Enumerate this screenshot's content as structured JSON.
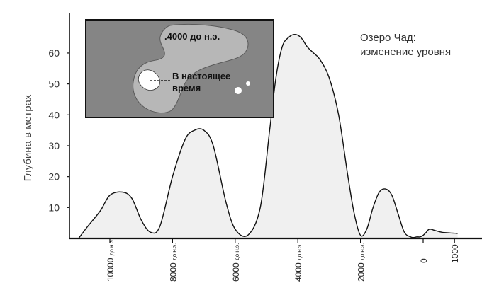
{
  "chart_data": {
    "type": "area",
    "title": "Озеро Чад:\nизменение уровня",
    "title_lines": [
      "Озеро Чад:",
      "изменение уровня"
    ],
    "ylabel": "Глубина в метрах",
    "xlabel": "",
    "yticks": [
      10,
      20,
      30,
      40,
      50,
      60
    ],
    "ylim": [
      0,
      68
    ],
    "xlim": [
      11000,
      -1100
    ],
    "xticks": [
      {
        "value": 10000,
        "label": "10000",
        "suffix": "до н.э."
      },
      {
        "value": 8000,
        "label": "8000",
        "suffix": "до н.э."
      },
      {
        "value": 6000,
        "label": "6000",
        "suffix": "до н.э."
      },
      {
        "value": 4000,
        "label": "4000",
        "suffix": "до н.э."
      },
      {
        "value": 2000,
        "label": "2000",
        "suffix": "до н.э."
      },
      {
        "value": 0,
        "label": "0",
        "suffix": ""
      },
      {
        "value": -1000,
        "label": "1000",
        "suffix": ""
      }
    ],
    "x": [
      11000,
      10700,
      10300,
      10000,
      9600,
      9300,
      9000,
      8700,
      8400,
      8000,
      7600,
      7300,
      7000,
      6700,
      6300,
      6000,
      5600,
      5200,
      4900,
      4700,
      4500,
      4300,
      4100,
      3900,
      3700,
      3500,
      3300,
      3000,
      2700,
      2400,
      2200,
      2000,
      1800,
      1600,
      1400,
      1200,
      1000,
      800,
      600,
      400,
      300,
      200,
      100,
      0,
      -100,
      -200,
      -400,
      -600,
      -800,
      -1000,
      -1100
    ],
    "values": [
      0,
      4,
      9,
      14,
      15,
      13,
      6,
      2,
      4,
      20,
      32,
      35,
      35,
      30,
      12,
      3,
      1,
      10,
      35,
      52,
      62,
      65,
      66,
      65,
      62,
      60,
      58,
      52,
      40,
      20,
      8,
      1,
      3,
      10,
      15,
      16,
      14,
      8,
      2,
      0.5,
      0.3,
      0.5,
      0.5,
      1,
      2,
      3,
      2.5,
      2,
      1.8,
      1.7,
      1.6
    ],
    "grid": false,
    "fill_color": "#f0f0f0",
    "line_color": "#111111"
  },
  "inset_map": {
    "label_past": ".4000 до н.э.",
    "label_present_line1": "В настоящее",
    "label_present_line2": "время",
    "land_color": "#858585",
    "lake_past_color": "#b7b7b7",
    "lake_present_color": "#ffffff"
  }
}
